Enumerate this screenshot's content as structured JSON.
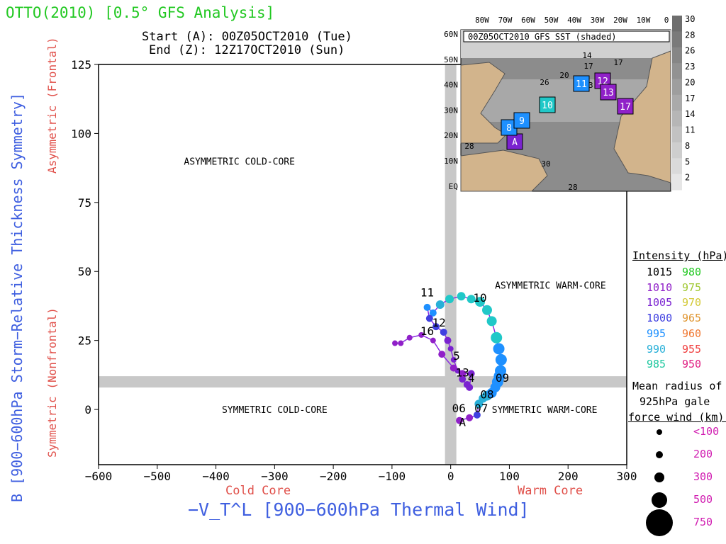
{
  "title": "OTTO(2010) [0.5° GFS Analysis]",
  "start_line": "Start (A): 00Z05OCT2010 (Tue)",
  "end_line": "End (Z): 12Z17OCT2010 (Sun)",
  "chart_data": {
    "type": "scatter",
    "xlabel": "−V_T^L [900−600hPa Thermal Wind]",
    "ylabel": "B [900−600hPa Storm−Relative Thickness Symmetry]",
    "x_side_labels": [
      "Cold Core",
      "Warm Core"
    ],
    "y_side_labels": [
      "Asymmetric (Frontal)",
      "Symmetric (Nonfrontal)"
    ],
    "xlim": [
      -600,
      300
    ],
    "ylim": [
      -20,
      125
    ],
    "x_ticks": [
      -600,
      -500,
      -400,
      -300,
      -200,
      -100,
      0,
      100,
      200,
      300
    ],
    "x_tick_labels": [
      "−600",
      "−500",
      "−400",
      "−300",
      "−200",
      "−100",
      "0",
      "100",
      "200",
      "300"
    ],
    "y_ticks": [
      0,
      25,
      50,
      75,
      100,
      125
    ],
    "y_tick_labels": [
      "0",
      "25",
      "50",
      "75",
      "100",
      "125"
    ],
    "quadrants": [
      {
        "label": "ASYMMETRIC COLD-CORE",
        "x": -360,
        "y": 90
      },
      {
        "label": "ASYMMETRIC WARM-CORE",
        "x": 170,
        "y": 45
      },
      {
        "label": "SYMMETRIC COLD-CORE",
        "x": -300,
        "y": 0
      },
      {
        "label": "SYMMETRIC WARM-CORE",
        "x": 160,
        "y": 0
      }
    ],
    "threshold_lines": {
      "x": 0,
      "y": 10
    },
    "series": [
      {
        "x": [
          15,
          32,
          45,
          48,
          55,
          62,
          70,
          76,
          80,
          83,
          85,
          86,
          82,
          78,
          70,
          62,
          50,
          35,
          18,
          -2,
          -18,
          -30,
          -40,
          -36,
          -25,
          -12,
          -5,
          0,
          5,
          12,
          20,
          28,
          32,
          35,
          20,
          5,
          -15,
          -30,
          -50,
          -70,
          -85,
          -95
        ],
        "y": [
          -4,
          -3,
          -2,
          2,
          4,
          5,
          6,
          8,
          10,
          12,
          14,
          18,
          22,
          26,
          32,
          36,
          39,
          40,
          41,
          40,
          38,
          35,
          37,
          33,
          30,
          28,
          25,
          22,
          18,
          14,
          11,
          9,
          8,
          13,
          13,
          15,
          20,
          25,
          27,
          26,
          24,
          24
        ],
        "sizes": [
          5,
          5,
          5,
          6,
          6,
          7,
          7,
          7,
          8,
          8,
          8,
          8,
          8,
          8,
          7,
          7,
          7,
          6,
          6,
          6,
          6,
          5,
          5,
          5,
          5,
          5,
          5,
          4,
          4,
          4,
          5,
          5,
          5,
          5,
          5,
          5,
          5,
          4,
          4,
          4,
          4,
          4
        ],
        "colors": [
          "#9020c8",
          "#9020c8",
          "#4040e0",
          "#28b0d8",
          "#28b0d8",
          "#28b0d8",
          "#1e90ff",
          "#1e90ff",
          "#1e90ff",
          "#1e90ff",
          "#1e90ff",
          "#1e90ff",
          "#1e90ff",
          "#20c8c8",
          "#20c8c8",
          "#20c8c8",
          "#20c8c8",
          "#20c8c8",
          "#20c8c8",
          "#20c8c8",
          "#28b0d8",
          "#1e90ff",
          "#1e90ff",
          "#4040e0",
          "#4040e0",
          "#4040e0",
          "#7a22d0",
          "#7a22d0",
          "#7a22d0",
          "#7a22d0",
          "#7a22d0",
          "#7a22d0",
          "#7a22d0",
          "#7a22d0",
          "#9020c8",
          "#9020c8",
          "#9020c8",
          "#9020c8",
          "#9020c8",
          "#9020c8",
          "#9020c8",
          "#9020c8"
        ]
      }
    ],
    "annotations": [
      {
        "label": "A",
        "x": 20,
        "y": -6
      },
      {
        "label": "06",
        "x": 14,
        "y": -1
      },
      {
        "label": "07",
        "x": 52,
        "y": -1
      },
      {
        "label": "08",
        "x": 62,
        "y": 4
      },
      {
        "label": "09",
        "x": 88,
        "y": 10
      },
      {
        "label": "10",
        "x": 50,
        "y": 39
      },
      {
        "label": "11",
        "x": -40,
        "y": 41
      },
      {
        "label": "12",
        "x": -20,
        "y": 30
      },
      {
        "label": "5",
        "x": 10,
        "y": 18
      },
      {
        "label": "4",
        "x": 35,
        "y": 10
      },
      {
        "label": "13",
        "x": 20,
        "y": 12
      },
      {
        "label": "16",
        "x": -40,
        "y": 27
      }
    ],
    "intensity_legend": {
      "title": "Intensity (hPa):",
      "col1": [
        {
          "label": "1015",
          "color": "#000000"
        },
        {
          "label": "1010",
          "color": "#9020c8"
        },
        {
          "label": "1005",
          "color": "#7a22d0"
        },
        {
          "label": "1000",
          "color": "#4040e0"
        },
        {
          "label": "995",
          "color": "#1e90ff"
        },
        {
          "label": "990",
          "color": "#28b0d8"
        },
        {
          "label": "985",
          "color": "#20c8a0"
        }
      ],
      "col2": [
        {
          "label": "980",
          "color": "#22c822"
        },
        {
          "label": "975",
          "color": "#a0c832"
        },
        {
          "label": "970",
          "color": "#d2c832"
        },
        {
          "label": "965",
          "color": "#e09632"
        },
        {
          "label": "960",
          "color": "#f07832"
        },
        {
          "label": "955",
          "color": "#f04040"
        },
        {
          "label": "950",
          "color": "#e01e82"
        }
      ]
    },
    "radius_legend": {
      "title_lines": [
        "Mean radius of",
        "925hPa gale",
        "force wind (km):"
      ],
      "items": [
        {
          "label": "<100",
          "size": 4
        },
        {
          "label": "200",
          "size": 5
        },
        {
          "label": "300",
          "size": 7
        },
        {
          "label": "500",
          "size": 11
        },
        {
          "label": "750",
          "size": 19
        }
      ]
    },
    "inset": {
      "label": "00Z05OCT2010 GFS SST (shaded)",
      "lon_labels": [
        "80W",
        "70W",
        "60W",
        "50W",
        "40W",
        "30W",
        "20W",
        "10W",
        "0"
      ],
      "lat_labels": [
        "60N",
        "50N",
        "40N",
        "30N",
        "20N",
        "10N",
        "EQ"
      ],
      "colorbar_labels": [
        "30",
        "28",
        "26",
        "23",
        "20",
        "17",
        "14",
        "11",
        "8",
        "5",
        "2"
      ],
      "contour_labels": [
        "14",
        "17",
        "20",
        "23",
        "26",
        "28",
        "30",
        "17",
        "28"
      ],
      "track_labels": [
        "A",
        "8",
        "9",
        "10",
        "11",
        "12",
        "13",
        "17"
      ]
    }
  }
}
